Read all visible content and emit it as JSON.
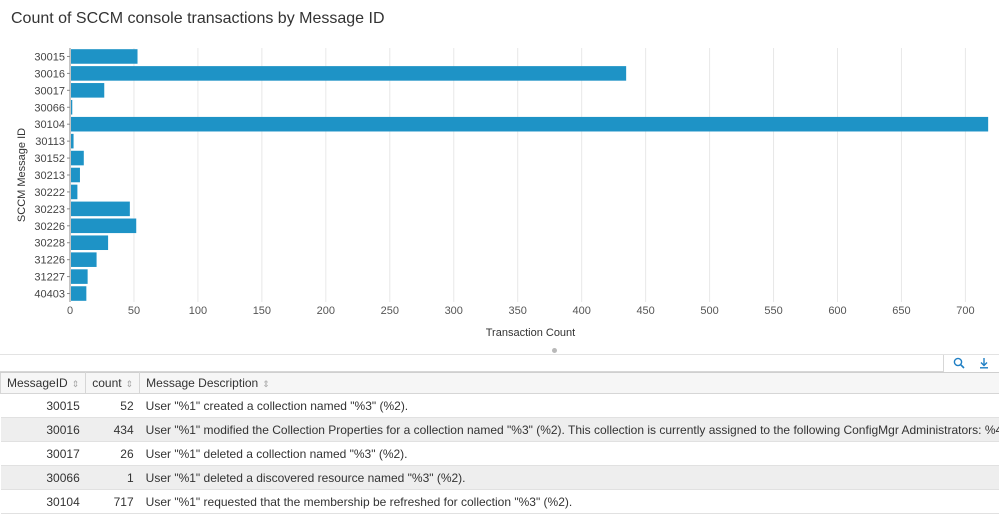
{
  "panel": {
    "title": "Count of SCCM console transactions by Message ID"
  },
  "colors": {
    "bar": "#1e93c6",
    "grid": "#e8e8e8",
    "axis": "#8a8a8a"
  },
  "chart_data": {
    "type": "bar",
    "orientation": "horizontal",
    "categories": [
      "30015",
      "30016",
      "30017",
      "30066",
      "30104",
      "30113",
      "30152",
      "30213",
      "30222",
      "30223",
      "30226",
      "30228",
      "31226",
      "31227",
      "40403"
    ],
    "values": [
      52,
      434,
      26,
      1,
      717,
      2,
      10,
      7,
      5,
      46,
      51,
      29,
      20,
      13,
      12
    ],
    "xlabel": "Transaction Count",
    "ylabel": "SCCM Message ID",
    "xlim": [
      0,
      720
    ],
    "xticks": [
      "0",
      "50",
      "100",
      "150",
      "200",
      "250",
      "300",
      "350",
      "400",
      "450",
      "500",
      "550",
      "600",
      "650",
      "700"
    ],
    "grid": true,
    "legend": "none"
  },
  "toolbar": {
    "search_icon": "search-icon",
    "export_icon": "download-icon"
  },
  "table": {
    "columns": [
      "MessageID",
      "count",
      "Message Description"
    ],
    "rows": [
      {
        "id": "30015",
        "count": "52",
        "desc": "User \"%1\" created a collection named \"%3\" (%2)."
      },
      {
        "id": "30016",
        "count": "434",
        "desc": "User \"%1\" modified the Collection Properties for a collection named \"%3\" (%2). This collection is currently assigned to the following ConfigMgr Administrators: %4"
      },
      {
        "id": "30017",
        "count": "26",
        "desc": "User \"%1\" deleted a collection named \"%3\" (%2)."
      },
      {
        "id": "30066",
        "count": "1",
        "desc": "User \"%1\" deleted a discovered resource named \"%3\" (%2)."
      },
      {
        "id": "30104",
        "count": "717",
        "desc": "User \"%1\" requested that the membership be refreshed for collection \"%3\" (%2)."
      }
    ]
  }
}
